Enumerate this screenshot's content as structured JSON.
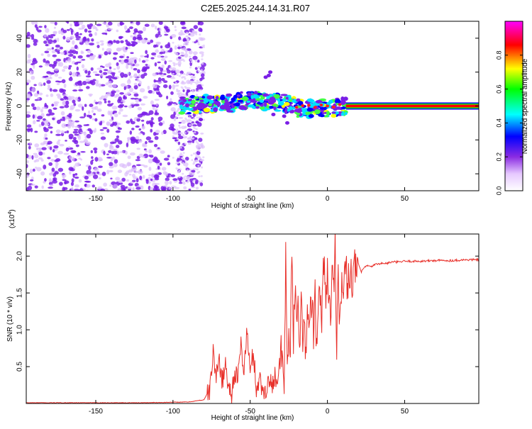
{
  "page": {
    "title": "C2E5.2025.244.14.31.R07"
  },
  "chart_data": [
    {
      "id": "spectrogram",
      "type": "heatmap",
      "title": "C2E5.2025.244.14.31.R07",
      "xlabel": "Height of straight line (km)",
      "ylabel": "Frequency (Hz)",
      "xlim": [
        -195,
        98
      ],
      "ylim": [
        -50,
        50
      ],
      "xticks": [
        -150,
        -100,
        -50,
        0,
        50
      ],
      "yticks": [
        -40,
        -20,
        0,
        20,
        40
      ],
      "ytick_labels": [
        "-40",
        "-20",
        "0",
        "20",
        "40"
      ],
      "colorbar": {
        "label": "Normalized spectral amplitude",
        "range": [
          0,
          1
        ],
        "ticks": [
          0.0,
          0.2,
          0.4,
          0.6,
          0.8
        ],
        "tick_labels": [
          "0.0",
          "0.2",
          "0.4",
          "0.6",
          "0.8"
        ],
        "colors": [
          "#ffffff",
          "#e6c8ff",
          "#8a2be2",
          "#0000ff",
          "#00ffff",
          "#00ff00",
          "#ffff00",
          "#ff0000",
          "#ff00ff"
        ]
      },
      "regions": [
        {
          "description": "noise",
          "x_range": [
            -195,
            -88
          ],
          "freq_range": [
            -50,
            50
          ],
          "amplitude": 0.1
        },
        {
          "description": "scattered",
          "x_range": [
            -95,
            12
          ],
          "freq_range": [
            -12,
            20
          ],
          "amplitude": 0.4
        },
        {
          "description": "tone",
          "x_range": [
            12,
            98
          ],
          "freq": 0,
          "amplitude": 1.0
        }
      ]
    },
    {
      "id": "snr",
      "type": "line",
      "title": "",
      "xlabel": "Height of straight line (km)",
      "ylabel": "SNR (10 * v/v)",
      "scale_label": "(x10",
      "scale_exp": "4",
      "scale_close": ")",
      "xlim": [
        -195,
        98
      ],
      "ylim": [
        0,
        2.3
      ],
      "xticks": [
        -150,
        -100,
        -50,
        0,
        50
      ],
      "yticks": [
        0.5,
        1.0,
        1.5,
        2.0
      ],
      "ytick_labels": [
        "0.5",
        "1.0",
        "1.5",
        "2.0"
      ],
      "color": "#e8302a",
      "series": [
        {
          "name": "SNR",
          "x": [
            -195,
            -120,
            -90,
            -80,
            -76,
            -74,
            -72,
            -70,
            -68,
            -66,
            -64,
            -62,
            -60,
            -58,
            -56,
            -54,
            -52,
            -50,
            -48,
            -46,
            -44,
            -42,
            -40,
            -38,
            -36,
            -34,
            -32,
            -30,
            -28,
            -27,
            -26,
            -25,
            -24,
            -23,
            -22,
            -21,
            -20,
            -19,
            -18,
            -17,
            -16,
            -15,
            -14,
            -13,
            -12,
            -11,
            -10,
            -9,
            -8,
            -7,
            -6,
            -5,
            -4,
            -3,
            -2,
            -1,
            0,
            1,
            2,
            3,
            4,
            5,
            6,
            7,
            8,
            9,
            10,
            11,
            12,
            13,
            14,
            15,
            16,
            17,
            18,
            19,
            20,
            22,
            24,
            26,
            28,
            30,
            34,
            38,
            42,
            46,
            50,
            60,
            70,
            80,
            90,
            98
          ],
          "y": [
            0.01,
            0.01,
            0.02,
            0.05,
            0.2,
            0.7,
            0.35,
            0.6,
            0.3,
            0.55,
            0.2,
            0.15,
            0.45,
            0.3,
            0.8,
            0.45,
            1.0,
            0.4,
            0.7,
            0.2,
            0.35,
            0.15,
            0.2,
            0.3,
            0.25,
            0.4,
            0.3,
            0.7,
            0.25,
            1.95,
            0.5,
            1.0,
            0.8,
            1.9,
            0.9,
            1.5,
            1.05,
            1.6,
            0.8,
            1.4,
            0.7,
            1.2,
            0.65,
            1.3,
            1.0,
            1.25,
            1.5,
            0.9,
            1.45,
            0.7,
            1.1,
            1.7,
            1.05,
            1.6,
            2.0,
            1.4,
            1.85,
            1.35,
            1.2,
            1.75,
            1.5,
            2.25,
            0.8,
            1.85,
            1.1,
            1.6,
            1.45,
            1.7,
            1.8,
            1.6,
            1.85,
            1.75,
            1.7,
            1.85,
            1.8,
            1.75,
            1.9,
            1.78,
            1.85,
            1.87,
            1.85,
            1.88,
            1.9,
            1.9,
            1.92,
            1.92,
            1.93,
            1.93,
            1.94,
            1.94,
            1.95,
            1.95
          ]
        }
      ]
    }
  ]
}
